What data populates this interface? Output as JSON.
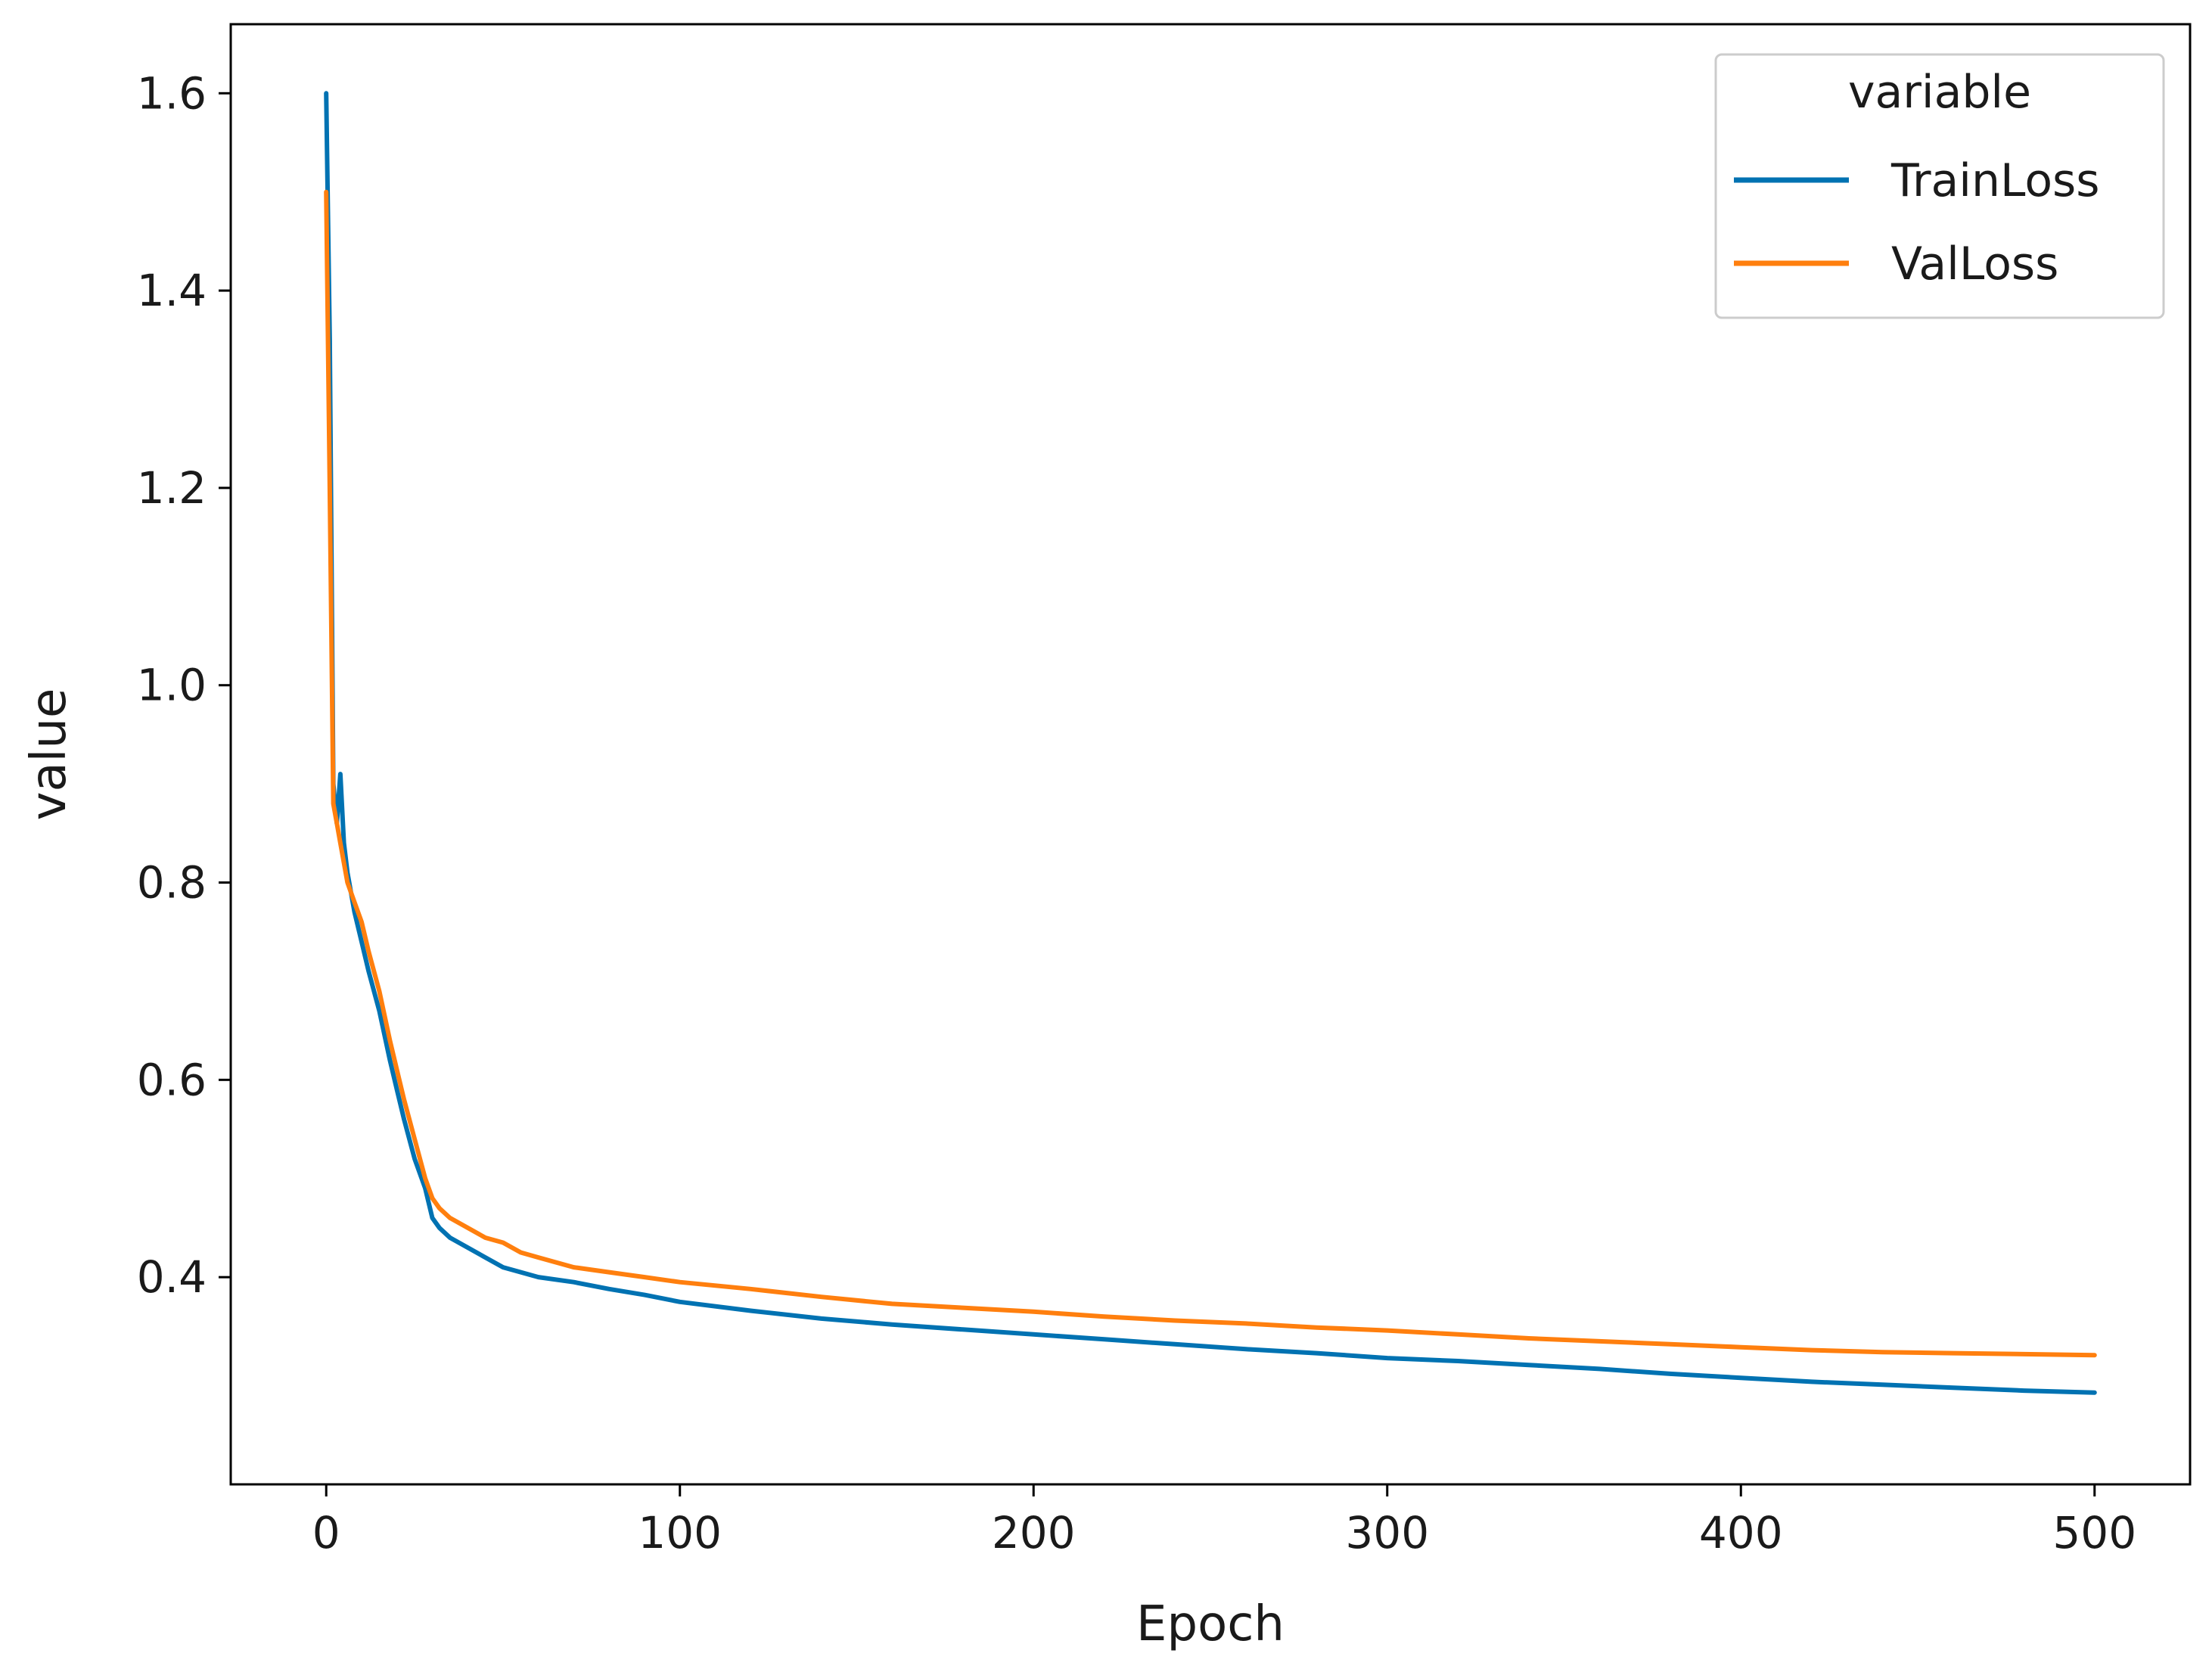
{
  "chart_data": {
    "type": "line",
    "title": "",
    "xlabel": "Epoch",
    "ylabel": "value",
    "xlim": [
      -27,
      527
    ],
    "ylim": [
      0.19,
      1.67
    ],
    "xticks": [
      0,
      100,
      200,
      300,
      400,
      500
    ],
    "xtick_labels": [
      "0",
      "100",
      "200",
      "300",
      "400",
      "500"
    ],
    "yticks": [
      0.4,
      0.6,
      0.8,
      1.0,
      1.2,
      1.4,
      1.6
    ],
    "ytick_labels": [
      "0.4",
      "0.6",
      "0.8",
      "1.0",
      "1.2",
      "1.4",
      "1.6"
    ],
    "grid": false,
    "legend": {
      "title": "variable",
      "placement": "top-right"
    },
    "series": [
      {
        "name": "TrainLoss",
        "color": "#0072b2",
        "x": [
          0,
          1,
          2,
          3,
          4,
          5,
          6,
          8,
          10,
          12,
          15,
          18,
          20,
          22,
          25,
          28,
          30,
          32,
          35,
          40,
          45,
          50,
          55,
          60,
          70,
          80,
          90,
          100,
          120,
          140,
          160,
          180,
          200,
          220,
          240,
          260,
          280,
          300,
          320,
          340,
          360,
          380,
          400,
          420,
          440,
          460,
          480,
          500
        ],
        "values": [
          1.6,
          1.35,
          0.9,
          0.86,
          0.91,
          0.84,
          0.81,
          0.77,
          0.74,
          0.71,
          0.67,
          0.62,
          0.59,
          0.56,
          0.52,
          0.49,
          0.46,
          0.45,
          0.44,
          0.43,
          0.42,
          0.41,
          0.405,
          0.4,
          0.395,
          0.388,
          0.382,
          0.375,
          0.366,
          0.358,
          0.352,
          0.347,
          0.342,
          0.337,
          0.332,
          0.327,
          0.323,
          0.318,
          0.315,
          0.311,
          0.307,
          0.302,
          0.298,
          0.294,
          0.291,
          0.288,
          0.285,
          0.283
        ]
      },
      {
        "name": "ValLoss",
        "color": "#ff7f0e",
        "x": [
          0,
          1,
          2,
          3,
          4,
          5,
          6,
          8,
          10,
          12,
          15,
          18,
          20,
          22,
          25,
          28,
          30,
          32,
          35,
          40,
          45,
          50,
          55,
          60,
          70,
          80,
          90,
          100,
          120,
          140,
          160,
          180,
          200,
          220,
          240,
          260,
          280,
          300,
          320,
          340,
          360,
          380,
          400,
          420,
          440,
          460,
          480,
          500
        ],
        "values": [
          1.5,
          1.2,
          0.88,
          0.86,
          0.84,
          0.82,
          0.8,
          0.78,
          0.76,
          0.73,
          0.69,
          0.64,
          0.61,
          0.58,
          0.54,
          0.5,
          0.48,
          0.47,
          0.46,
          0.45,
          0.44,
          0.435,
          0.425,
          0.42,
          0.41,
          0.405,
          0.4,
          0.395,
          0.388,
          0.38,
          0.373,
          0.369,
          0.365,
          0.36,
          0.356,
          0.353,
          0.349,
          0.346,
          0.342,
          0.338,
          0.335,
          0.332,
          0.329,
          0.326,
          0.324,
          0.323,
          0.322,
          0.321
        ]
      }
    ]
  }
}
